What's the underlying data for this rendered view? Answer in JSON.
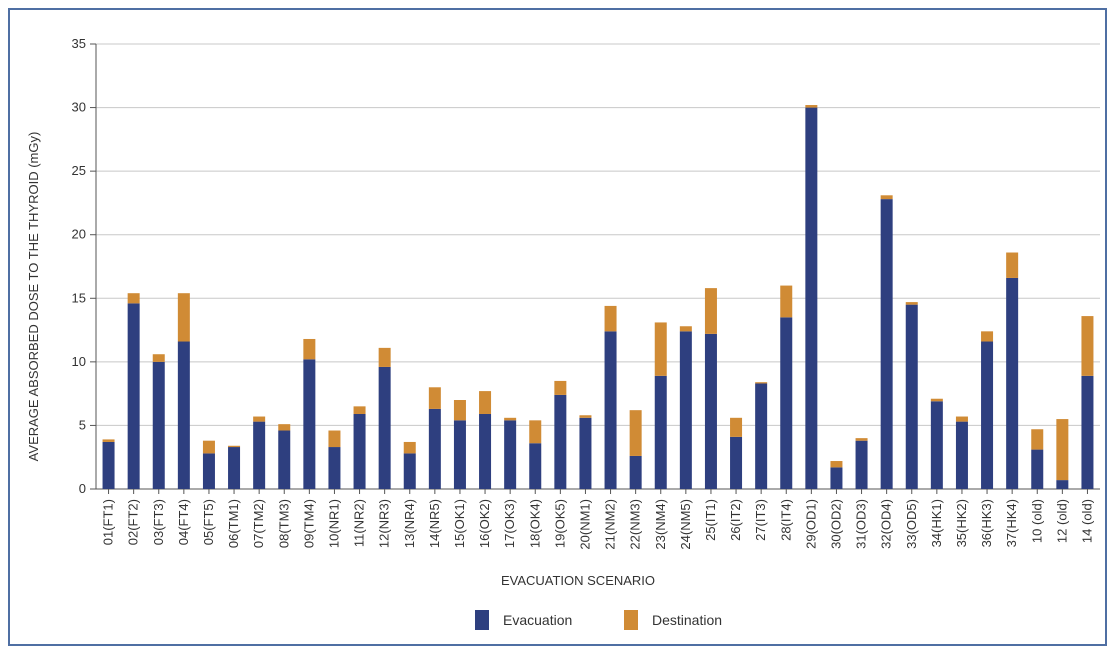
{
  "chart_data": {
    "type": "bar",
    "stacked": true,
    "title": "",
    "xlabel": "EVACUATION SCENARIO",
    "ylabel": "AVERAGE ABSORBED DOSE TO THE THYROID (mGy)",
    "ylim": [
      0,
      35
    ],
    "yticks": [
      0,
      5,
      10,
      15,
      20,
      25,
      30,
      35
    ],
    "grid": true,
    "legend_placement": "bottom-center",
    "categories": [
      "01(FT1)",
      "02(FT2)",
      "03(FT3)",
      "04(FT4)",
      "05(FT5)",
      "06(TM1)",
      "07(TM2)",
      "08(TM3)",
      "09(TM4)",
      "10(NR1)",
      "11(NR2)",
      "12(NR3)",
      "13(NR4)",
      "14(NR5)",
      "15(OK1)",
      "16(OK2)",
      "17(OK3)",
      "18(OK4)",
      "19(OK5)",
      "20(NM1)",
      "21(NM2)",
      "22(NM3)",
      "23(NM4)",
      "24(NM5)",
      "25(IT1)",
      "26(IT2)",
      "27(IT3)",
      "28(IT4)",
      "29(OD1)",
      "30(OD2)",
      "31(OD3)",
      "32(OD4)",
      "33(OD5)",
      "34(HK1)",
      "35(HK2)",
      "36(HK3)",
      "37(HK4)",
      "10 (old)",
      "12 (old)",
      "14 (old)"
    ],
    "series": [
      {
        "name": "Evacuation",
        "color": "#2e3f7f",
        "values": [
          3.7,
          14.6,
          10.0,
          11.6,
          2.8,
          3.3,
          5.3,
          4.6,
          10.2,
          3.3,
          5.9,
          9.6,
          2.8,
          6.3,
          5.4,
          5.9,
          5.4,
          3.6,
          7.4,
          5.6,
          12.4,
          2.6,
          8.9,
          12.4,
          12.2,
          4.1,
          8.3,
          13.5,
          30.0,
          1.7,
          3.8,
          22.8,
          14.5,
          6.9,
          5.3,
          11.6,
          16.6,
          3.1,
          0.7,
          8.9
        ]
      },
      {
        "name": "Destination",
        "color": "#d08b35",
        "values": [
          0.2,
          0.8,
          0.6,
          3.8,
          1.0,
          0.1,
          0.4,
          0.5,
          1.6,
          1.3,
          0.6,
          1.5,
          0.9,
          1.7,
          1.6,
          1.8,
          0.2,
          1.8,
          1.1,
          0.2,
          2.0,
          3.6,
          4.2,
          0.4,
          3.6,
          1.5,
          0.1,
          2.5,
          0.2,
          0.5,
          0.2,
          0.3,
          0.2,
          0.2,
          0.4,
          0.8,
          2.0,
          1.6,
          4.8,
          4.7
        ]
      }
    ]
  }
}
